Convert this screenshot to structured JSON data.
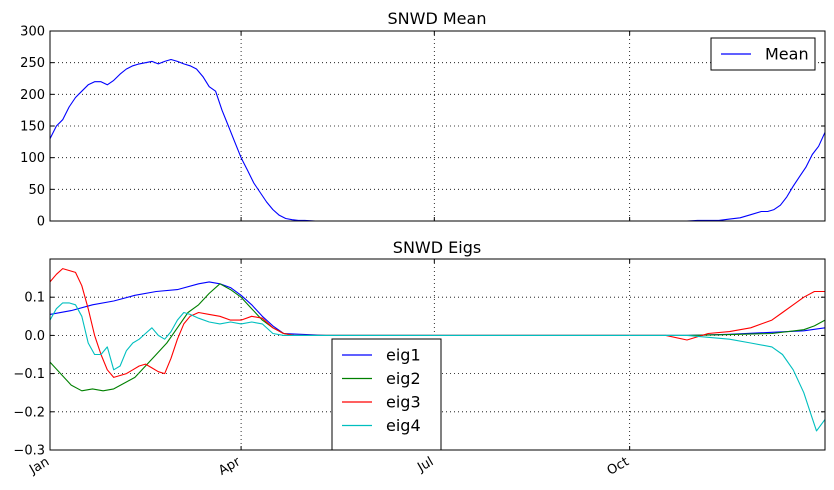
{
  "chart_data": [
    {
      "type": "line",
      "title": "SNWD Mean",
      "xlabel": "",
      "ylabel": "",
      "xlim": [
        0,
        365
      ],
      "ylim": [
        0,
        300
      ],
      "yticks": [
        0,
        50,
        100,
        150,
        200,
        250,
        300
      ],
      "ytick_labels": [
        "0",
        "50",
        "100",
        "150",
        "200",
        "250",
        "300"
      ],
      "grid": true,
      "legend_position": "upper right",
      "series": [
        {
          "name": "Mean",
          "color": "#0000ff",
          "x": [
            0,
            3,
            6,
            9,
            12,
            15,
            18,
            21,
            24,
            27,
            30,
            33,
            36,
            39,
            42,
            45,
            48,
            51,
            54,
            57,
            60,
            63,
            66,
            69,
            72,
            75,
            78,
            81,
            84,
            87,
            90,
            93,
            96,
            99,
            102,
            105,
            108,
            111,
            114,
            117,
            120,
            125,
            135,
            150,
            180,
            210,
            240,
            270,
            290,
            300,
            305,
            310,
            315,
            320,
            325,
            330,
            335,
            338,
            341,
            344,
            347,
            350,
            353,
            356,
            359,
            362,
            365
          ],
          "y": [
            130,
            150,
            160,
            180,
            195,
            205,
            215,
            220,
            220,
            215,
            222,
            232,
            240,
            245,
            248,
            250,
            252,
            248,
            252,
            255,
            252,
            248,
            245,
            240,
            228,
            212,
            205,
            175,
            150,
            125,
            100,
            80,
            60,
            45,
            30,
            18,
            9,
            4,
            2,
            1,
            1,
            0,
            0,
            0,
            0,
            0,
            0,
            0,
            0,
            0,
            1,
            1,
            1,
            3,
            5,
            10,
            15,
            15,
            18,
            25,
            38,
            55,
            70,
            85,
            105,
            118,
            140
          ]
        }
      ]
    },
    {
      "type": "line",
      "title": "SNWD Eigs",
      "xlabel": "",
      "ylabel": "",
      "xlim": [
        0,
        365
      ],
      "ylim": [
        -0.3,
        0.2
      ],
      "yticks": [
        -0.3,
        -0.2,
        -0.1,
        0.0,
        0.1
      ],
      "ytick_labels": [
        "−0.3",
        "−0.2",
        "−0.1",
        "0.0",
        "0.1"
      ],
      "xticks": [
        0,
        90,
        181,
        273
      ],
      "xtick_labels": [
        "Jan",
        "Apr",
        "Jul",
        "Oct"
      ],
      "grid": true,
      "legend_position": "lower center",
      "series": [
        {
          "name": "eig1",
          "color": "#0000ff",
          "x": [
            0,
            10,
            20,
            30,
            40,
            50,
            60,
            70,
            75,
            80,
            85,
            90,
            95,
            100,
            105,
            110,
            130,
            200,
            280,
            300,
            320,
            340,
            355,
            365
          ],
          "y": [
            0.055,
            0.065,
            0.08,
            0.09,
            0.105,
            0.115,
            0.12,
            0.135,
            0.14,
            0.135,
            0.125,
            0.105,
            0.08,
            0.05,
            0.025,
            0.005,
            0.0,
            0.0,
            0.0,
            0.0,
            0.003,
            0.008,
            0.012,
            0.02
          ]
        },
        {
          "name": "eig2",
          "color": "#008000",
          "x": [
            0,
            5,
            10,
            15,
            20,
            25,
            30,
            35,
            40,
            45,
            50,
            55,
            60,
            65,
            70,
            75,
            80,
            85,
            90,
            95,
            100,
            105,
            110,
            115,
            130,
            200,
            280,
            300,
            320,
            340,
            355,
            360,
            365
          ],
          "y": [
            -0.07,
            -0.1,
            -0.13,
            -0.145,
            -0.14,
            -0.145,
            -0.14,
            -0.125,
            -0.11,
            -0.08,
            -0.05,
            -0.02,
            0.02,
            0.06,
            0.08,
            0.11,
            0.135,
            0.12,
            0.1,
            0.07,
            0.04,
            0.02,
            0.005,
            0.0,
            0.0,
            0.0,
            0.0,
            0.0,
            0.002,
            0.005,
            0.015,
            0.025,
            0.04
          ]
        },
        {
          "name": "eig3",
          "color": "#ff0000",
          "x": [
            0,
            3,
            6,
            9,
            12,
            15,
            18,
            21,
            24,
            27,
            30,
            33,
            36,
            39,
            42,
            45,
            48,
            51,
            54,
            57,
            60,
            63,
            66,
            70,
            75,
            80,
            85,
            90,
            95,
            100,
            105,
            110,
            115,
            130,
            200,
            290,
            300,
            310,
            320,
            330,
            340,
            345,
            350,
            355,
            360,
            365
          ],
          "y": [
            0.14,
            0.16,
            0.175,
            0.17,
            0.165,
            0.13,
            0.07,
            0.0,
            -0.05,
            -0.09,
            -0.11,
            -0.105,
            -0.1,
            -0.09,
            -0.08,
            -0.075,
            -0.085,
            -0.095,
            -0.1,
            -0.06,
            -0.01,
            0.03,
            0.05,
            0.06,
            0.055,
            0.05,
            0.04,
            0.04,
            0.05,
            0.045,
            0.02,
            0.005,
            0.0,
            0.0,
            0.0,
            0.0,
            -0.012,
            0.005,
            0.01,
            0.02,
            0.04,
            0.06,
            0.08,
            0.1,
            0.115,
            0.115
          ]
        },
        {
          "name": "eig4",
          "color": "#00bfbf",
          "x": [
            0,
            3,
            6,
            9,
            12,
            15,
            18,
            21,
            24,
            27,
            30,
            33,
            36,
            39,
            42,
            45,
            48,
            51,
            54,
            57,
            60,
            63,
            66,
            70,
            75,
            80,
            85,
            90,
            95,
            100,
            105,
            110,
            115,
            130,
            200,
            290,
            300,
            310,
            320,
            330,
            340,
            345,
            350,
            355,
            358,
            361,
            365
          ],
          "y": [
            0.04,
            0.07,
            0.085,
            0.085,
            0.08,
            0.05,
            -0.02,
            -0.05,
            -0.05,
            -0.03,
            -0.09,
            -0.08,
            -0.04,
            -0.02,
            -0.01,
            0.005,
            0.02,
            0.0,
            -0.01,
            0.01,
            0.04,
            0.06,
            0.055,
            0.045,
            0.035,
            0.03,
            0.035,
            0.03,
            0.035,
            0.03,
            0.005,
            0.0,
            0.0,
            0.0,
            0.0,
            0.0,
            0.0,
            -0.005,
            -0.01,
            -0.02,
            -0.03,
            -0.05,
            -0.09,
            -0.15,
            -0.2,
            -0.25,
            -0.22
          ]
        }
      ]
    }
  ]
}
